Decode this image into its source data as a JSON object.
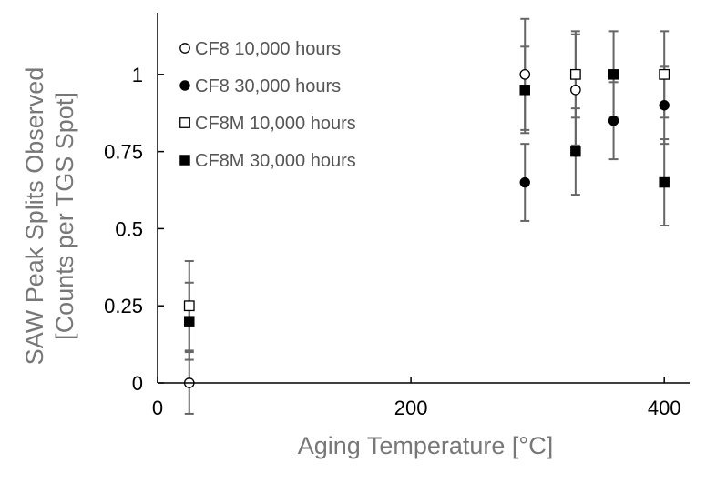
{
  "chart_data": {
    "type": "scatter",
    "xlabel": "Aging Temperature [°C]",
    "ylabel_lines": [
      "SAW Peak Splits Observed",
      "[Counts per TGS Spot]"
    ],
    "xlim": [
      0,
      420
    ],
    "ylim": [
      0,
      1.2
    ],
    "x_ticks": [
      0,
      200,
      400
    ],
    "x_tick_labels": [
      "0",
      "200",
      "400"
    ],
    "y_ticks": [
      0,
      0.25,
      0.5,
      0.75,
      1
    ],
    "y_tick_labels": [
      "0",
      "0.25",
      "0.5",
      "0.75",
      "1"
    ],
    "grid": false,
    "legend_position": "top-left",
    "series": [
      {
        "name": "CF8 10,000 hours",
        "marker": "open-circle",
        "points": [
          {
            "x": 25,
            "y": 0,
            "err": 0.1
          },
          {
            "x": 290,
            "y": 1,
            "err": 0.18
          },
          {
            "x": 330,
            "y": 0.95,
            "err": 0.18
          }
        ]
      },
      {
        "name": "CF8 30,000 hours",
        "marker": "filled-circle",
        "points": [
          {
            "x": 290,
            "y": 0.65,
            "err": 0.125
          },
          {
            "x": 360,
            "y": 0.85,
            "err": 0.125
          },
          {
            "x": 400,
            "y": 0.9,
            "err": 0.125
          }
        ]
      },
      {
        "name": "CF8M 10,000 hours",
        "marker": "open-square",
        "points": [
          {
            "x": 25,
            "y": 0.25,
            "err": 0.145
          },
          {
            "x": 330,
            "y": 1,
            "err": 0.14
          },
          {
            "x": 400,
            "y": 1,
            "err": 0.14
          }
        ]
      },
      {
        "name": "CF8M 30,000 hours",
        "marker": "filled-square",
        "points": [
          {
            "x": 25,
            "y": 0.2,
            "err": 0.125
          },
          {
            "x": 290,
            "y": 0.95,
            "err": 0.14
          },
          {
            "x": 330,
            "y": 0.75,
            "err": 0.14
          },
          {
            "x": 360,
            "y": 1,
            "err": 0.14
          },
          {
            "x": 400,
            "y": 0.65,
            "err": 0.14
          }
        ]
      }
    ],
    "colors": {
      "marker": "#000000",
      "error_bar": "#666666",
      "axis": "#000000"
    }
  }
}
